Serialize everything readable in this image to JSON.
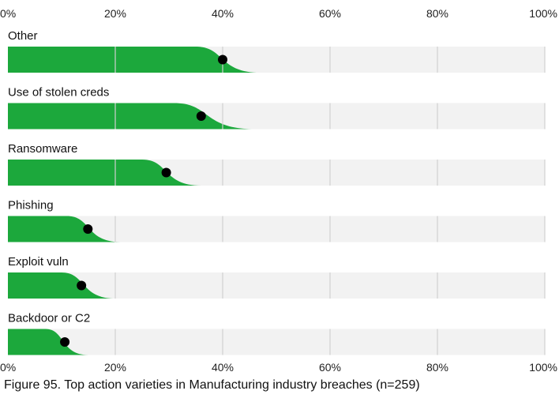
{
  "caption": "Figure 95. Top action varieties in Manufacturing industry breaches (n=259)",
  "chart_data": {
    "type": "slab",
    "title": "",
    "xlabel": "",
    "ylabel": "",
    "x_ticks": [
      "0%",
      "20%",
      "40%",
      "60%",
      "80%",
      "100%"
    ],
    "xlim": [
      0,
      1
    ],
    "grid": true,
    "colors": {
      "fill": "#1ca83c",
      "track": "#f2f2f2",
      "grid": "#d0d0d0",
      "point": "#000000"
    },
    "categories": [
      "Other",
      "Use of stolen creds",
      "Ransomware",
      "Phishing",
      "Exploit vuln",
      "Backdoor or C2"
    ],
    "values": [
      0.4,
      0.36,
      0.295,
      0.149,
      0.137,
      0.106
    ],
    "interval_low": [
      0.35,
      0.31,
      0.25,
      0.11,
      0.1,
      0.07
    ],
    "interval_high": [
      0.47,
      0.46,
      0.36,
      0.21,
      0.2,
      0.15
    ]
  }
}
